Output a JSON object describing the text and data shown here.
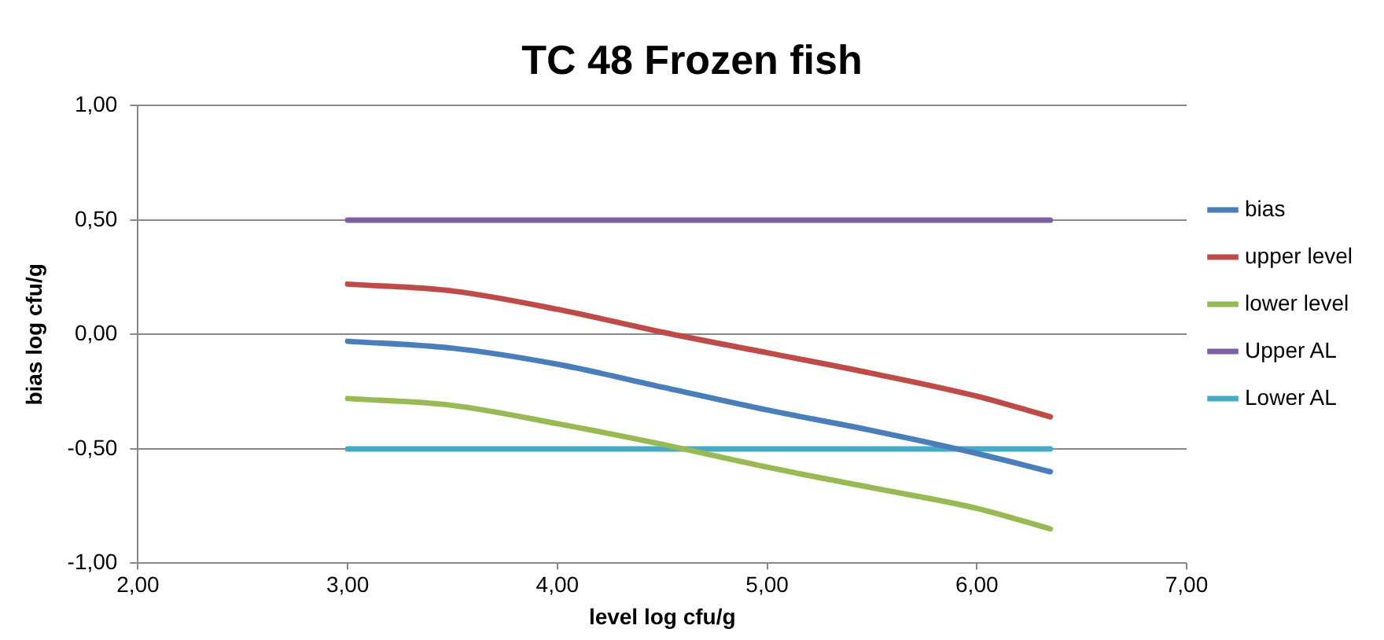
{
  "chart_data": {
    "type": "line",
    "title": "TC 48 Frozen fish",
    "xlabel": "level log cfu/g",
    "ylabel": "bias log cfu/g",
    "x": [
      3.0,
      3.5,
      4.0,
      4.5,
      5.0,
      5.5,
      6.0,
      6.35
    ],
    "series": [
      {
        "name": "bias",
        "color": "#4a7ebb",
        "values": [
          -0.03,
          -0.06,
          -0.13,
          -0.23,
          -0.33,
          -0.42,
          -0.52,
          -0.6
        ]
      },
      {
        "name": "upper level",
        "color": "#be4b48",
        "values": [
          0.22,
          0.19,
          0.11,
          0.01,
          -0.08,
          -0.17,
          -0.27,
          -0.36
        ]
      },
      {
        "name": "lower level",
        "color": "#98b954",
        "values": [
          -0.28,
          -0.31,
          -0.39,
          -0.48,
          -0.58,
          -0.67,
          -0.76,
          -0.85
        ]
      },
      {
        "name": "Upper AL",
        "color": "#7d60a0",
        "values": [
          0.5,
          0.5,
          0.5,
          0.5,
          0.5,
          0.5,
          0.5,
          0.5
        ]
      },
      {
        "name": "Lower AL",
        "color": "#46aac5",
        "values": [
          -0.5,
          -0.5,
          -0.5,
          -0.5,
          -0.5,
          -0.5,
          -0.5,
          -0.5
        ]
      }
    ],
    "xlim": [
      2,
      7
    ],
    "xticks": [
      {
        "value": 2,
        "label": "2,00"
      },
      {
        "value": 3,
        "label": "3,00"
      },
      {
        "value": 4,
        "label": "4,00"
      },
      {
        "value": 5,
        "label": "5,00"
      },
      {
        "value": 6,
        "label": "6,00"
      },
      {
        "value": 7,
        "label": "7,00"
      }
    ],
    "ylim": [
      -1,
      1
    ],
    "yticks": [
      {
        "value": -1,
        "label": "-1,00"
      },
      {
        "value": -0.5,
        "label": "-0,50"
      },
      {
        "value": 0,
        "label": "0,00"
      },
      {
        "value": 0.5,
        "label": "0,50"
      },
      {
        "value": 1,
        "label": "1,00"
      }
    ],
    "grid": "y",
    "legend": "right",
    "marker": "none",
    "line_style": "solid"
  }
}
